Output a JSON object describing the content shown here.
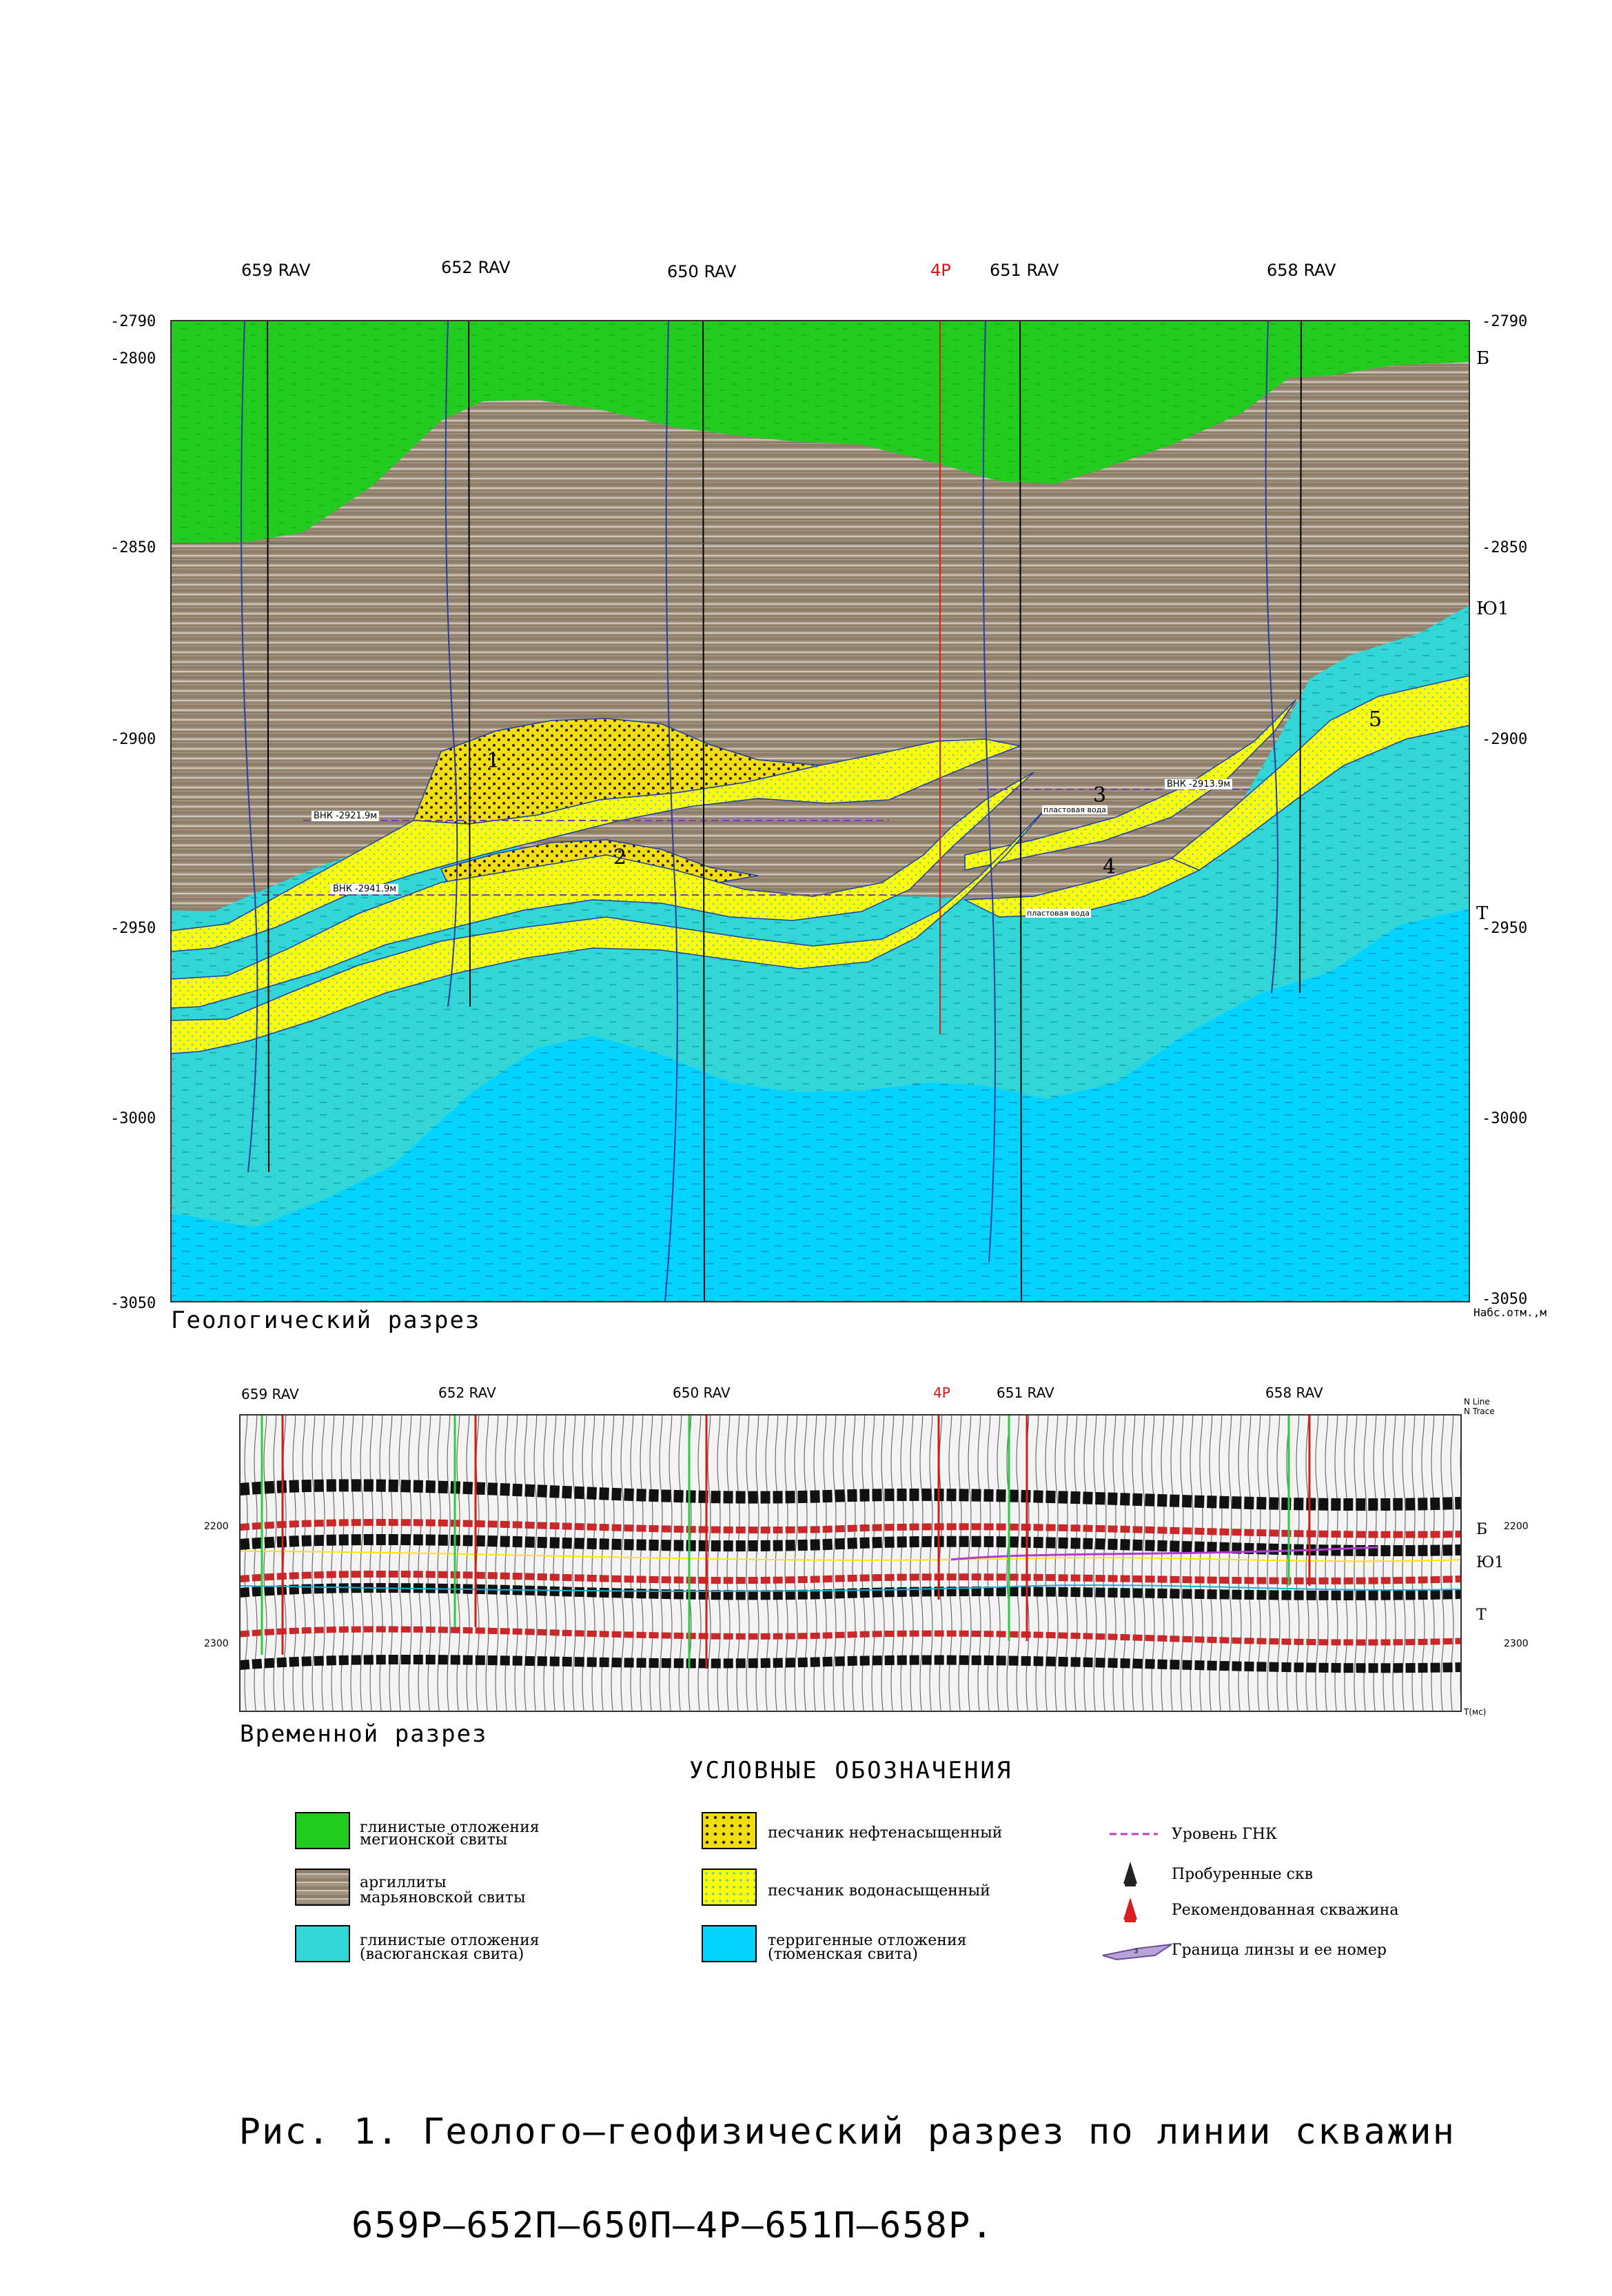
{
  "geo_section": {
    "wells": [
      {
        "label": "659 RAV",
        "recommended": false
      },
      {
        "label": "652 RAV",
        "recommended": false
      },
      {
        "label": "650 RAV",
        "recommended": false
      },
      {
        "label": "4Р",
        "recommended": true
      },
      {
        "label": "651 RAV",
        "recommended": false
      },
      {
        "label": "658 RAV",
        "recommended": false
      }
    ],
    "depth_ticks": [
      "-2790",
      "-2800",
      "-2850",
      "-2900",
      "-2950",
      "-3000",
      "-3050"
    ],
    "depth_ticks_right": [
      "-2790",
      "-2850",
      "-2900",
      "-2950",
      "-3000",
      "-3050"
    ],
    "axis_unit": "Набс.отм.,м",
    "horizon_labels": [
      "Б",
      "Ю1",
      "Т"
    ],
    "lens_numbers": [
      "1",
      "2",
      "3",
      "4",
      "5"
    ],
    "annotations": [
      "ВНК -2921.9м",
      "ВНК -2941.9м",
      "ВНК -2913.9м",
      "пластовая вода",
      "пластовая вода"
    ],
    "title": "Геологический разрез",
    "colors": {
      "megion_green": "#22cc22",
      "maryanov_brown": "#a0917e",
      "vasyugan_cyan": "#2fd3d3",
      "tyumen_blue": "#00d2ff",
      "oil_sand": "#e8c800",
      "water_sand": "#ffff00"
    }
  },
  "seismic_section": {
    "title": "Временной разрез",
    "wells": [
      "659 RAV",
      "652 RAV",
      "650 RAV",
      "4Р",
      "651 RAV",
      "658 RAV"
    ],
    "time_ticks": [
      "2200",
      "2300"
    ],
    "horizon_labels": [
      "Б",
      "Ю1",
      "Т"
    ],
    "corner_labels": [
      "N Line",
      "N Trace",
      "T(мс)"
    ]
  },
  "legend": {
    "title": "УСЛОВНЫЕ ОБОЗНАЧЕНИЯ",
    "items": [
      {
        "name": "megion",
        "text1": "глинистые отложения",
        "text2": "мегионской свиты"
      },
      {
        "name": "maryanov",
        "text1": "аргиллиты",
        "text2": "марьяновской свиты"
      },
      {
        "name": "vasyugan",
        "text1": "глинистые отложения",
        "text2": "(васюганская свита)"
      },
      {
        "name": "oil-sand",
        "text1": "песчаник нефтенасыщенный",
        "text2": ""
      },
      {
        "name": "water-sand",
        "text1": "песчаник водонасыщенный",
        "text2": ""
      },
      {
        "name": "tyumen",
        "text1": "терригенные отложения",
        "text2": "(тюменская свита)"
      },
      {
        "name": "gnk-level",
        "text1": "Уровень ГНК",
        "text2": ""
      },
      {
        "name": "drilled-well",
        "text1": "Пробуренные скв",
        "text2": ""
      },
      {
        "name": "recommended-well",
        "text1": "Рекомендованная скважина",
        "text2": ""
      },
      {
        "name": "lens-boundary",
        "text1": "Граница линзы и ее номер",
        "text2": "",
        "sample_number": "з"
      }
    ]
  },
  "caption": {
    "line1": "Рис. 1. Геолого–геофизический разрез по линии скважин",
    "line2": "659Р–652П–650П–4Р–651П–658Р."
  }
}
